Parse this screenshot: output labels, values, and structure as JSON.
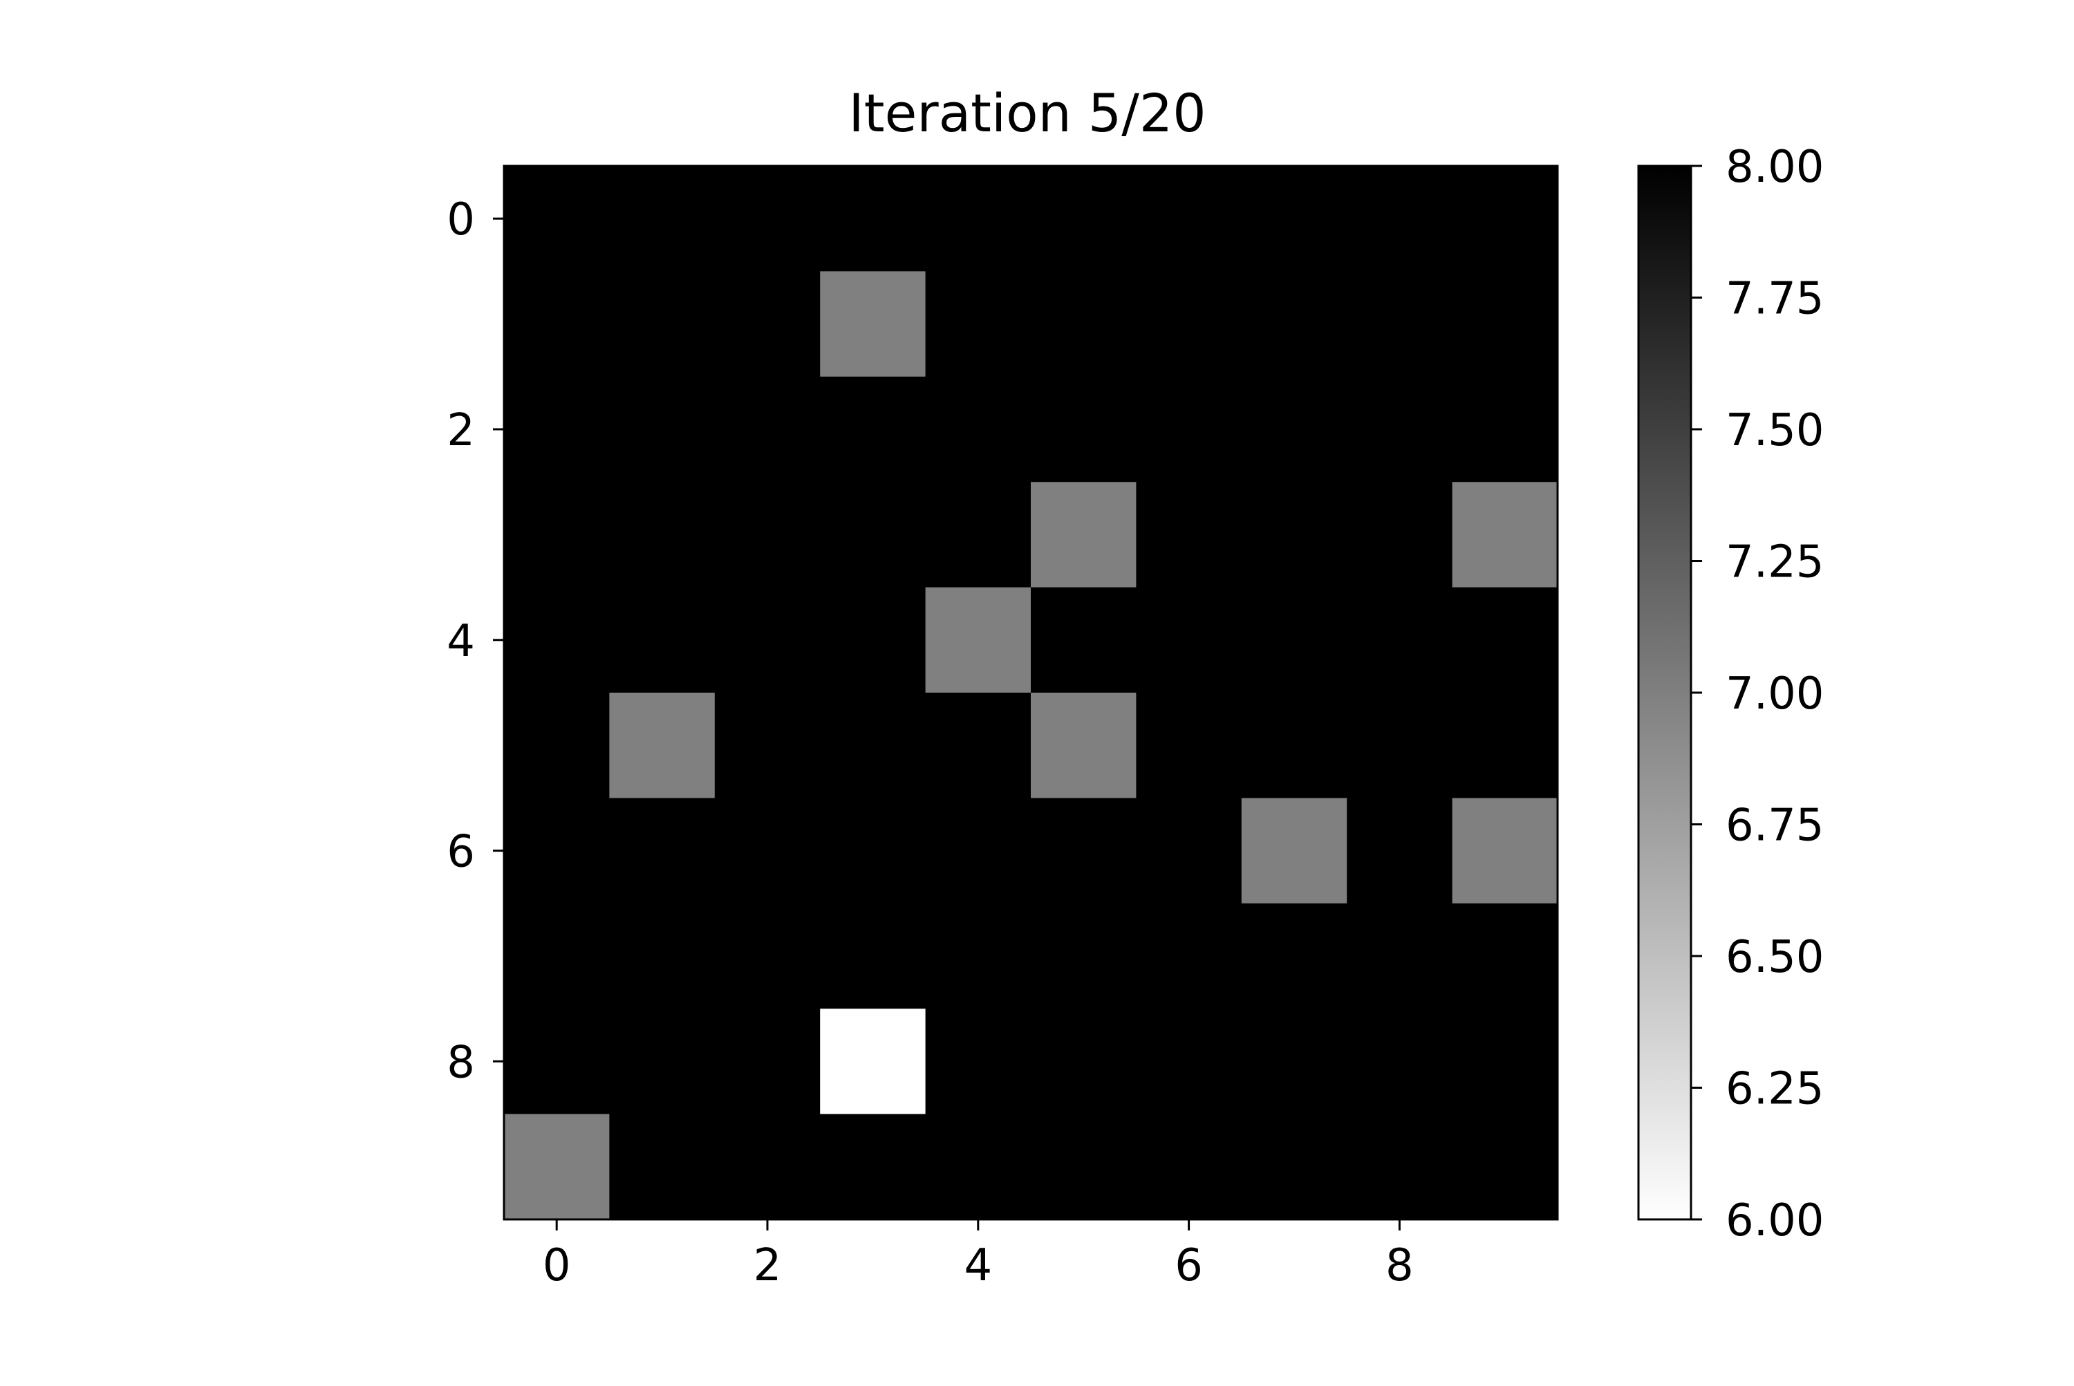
{
  "chart_data": {
    "type": "heatmap",
    "title": "Iteration 5/20",
    "xlabel": "",
    "ylabel": "",
    "colormap": "gray_r",
    "grid": false,
    "x_ticks": [
      "0",
      "2",
      "4",
      "6",
      "8"
    ],
    "y_ticks": [
      "0",
      "2",
      "4",
      "6",
      "8"
    ],
    "xlim": [
      -0.5,
      9.5
    ],
    "ylim": [
      9.5,
      -0.5
    ],
    "colorbar": {
      "min": 6.0,
      "max": 8.0,
      "ticks": [
        "6.00",
        "6.25",
        "6.50",
        "6.75",
        "7.00",
        "7.25",
        "7.50",
        "7.75",
        "8.00"
      ]
    },
    "matrix": [
      [
        8,
        8,
        8,
        8,
        8,
        8,
        8,
        8,
        8,
        8
      ],
      [
        8,
        8,
        8,
        7,
        8,
        8,
        8,
        8,
        8,
        8
      ],
      [
        8,
        8,
        8,
        8,
        8,
        8,
        8,
        8,
        8,
        8
      ],
      [
        8,
        8,
        8,
        8,
        8,
        7,
        8,
        8,
        8,
        7
      ],
      [
        8,
        8,
        8,
        8,
        7,
        8,
        8,
        8,
        8,
        8
      ],
      [
        8,
        7,
        8,
        8,
        8,
        7,
        8,
        8,
        8,
        8
      ],
      [
        8,
        8,
        8,
        8,
        8,
        8,
        8,
        7,
        8,
        7
      ],
      [
        8,
        8,
        8,
        8,
        8,
        8,
        8,
        8,
        8,
        8
      ],
      [
        8,
        8,
        8,
        6,
        8,
        8,
        8,
        8,
        8,
        8
      ],
      [
        7,
        8,
        8,
        8,
        8,
        8,
        8,
        8,
        8,
        8
      ]
    ]
  }
}
